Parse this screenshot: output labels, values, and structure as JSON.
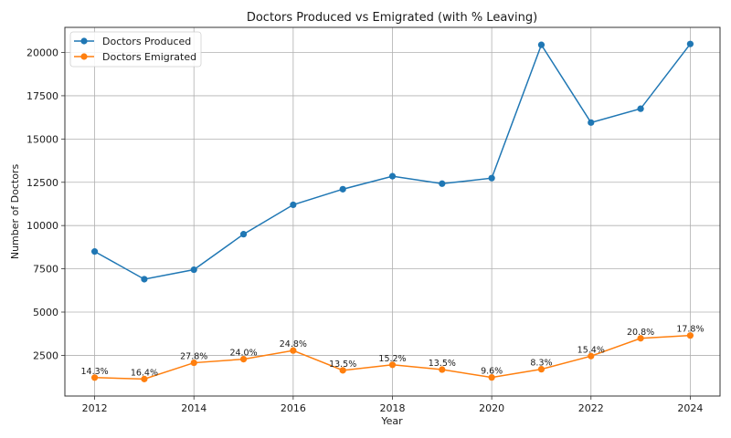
{
  "chart_data": {
    "type": "line",
    "title": "Doctors Produced vs Emigrated (with % Leaving)",
    "xlabel": "Year",
    "ylabel": "Number of Doctors",
    "x": [
      2012,
      2013,
      2014,
      2015,
      2016,
      2017,
      2018,
      2019,
      2020,
      2021,
      2022,
      2023,
      2024
    ],
    "xlim": [
      2011.4,
      2024.6
    ],
    "ylim": [
      150,
      21450
    ],
    "xticks": [
      2012,
      2014,
      2016,
      2018,
      2020,
      2022,
      2024
    ],
    "yticks": [
      2500,
      5000,
      7500,
      10000,
      12500,
      15000,
      17500,
      20000
    ],
    "grid": true,
    "legend_position": "top-left",
    "series": [
      {
        "name": "Doctors Produced",
        "color": "#1f77b4",
        "marker": "circle",
        "values": [
          8500,
          6900,
          7450,
          9500,
          11200,
          12100,
          12850,
          12420,
          12740,
          20440,
          15950,
          16750,
          20490
        ]
      },
      {
        "name": "Doctors Emigrated",
        "color": "#ff7f0e",
        "marker": "circle",
        "values": [
          1215,
          1132,
          2071,
          2280,
          2778,
          1634,
          1953,
          1677,
          1223,
          1697,
          2456,
          3484,
          3647
        ]
      }
    ],
    "annotations": [
      "14.3%",
      "16.4%",
      "27.8%",
      "24.0%",
      "24.8%",
      "13.5%",
      "15.2%",
      "13.5%",
      "9.6%",
      "8.3%",
      "15.4%",
      "20.8%",
      "17.8%"
    ],
    "annotation_series": "Doctors Emigrated"
  }
}
